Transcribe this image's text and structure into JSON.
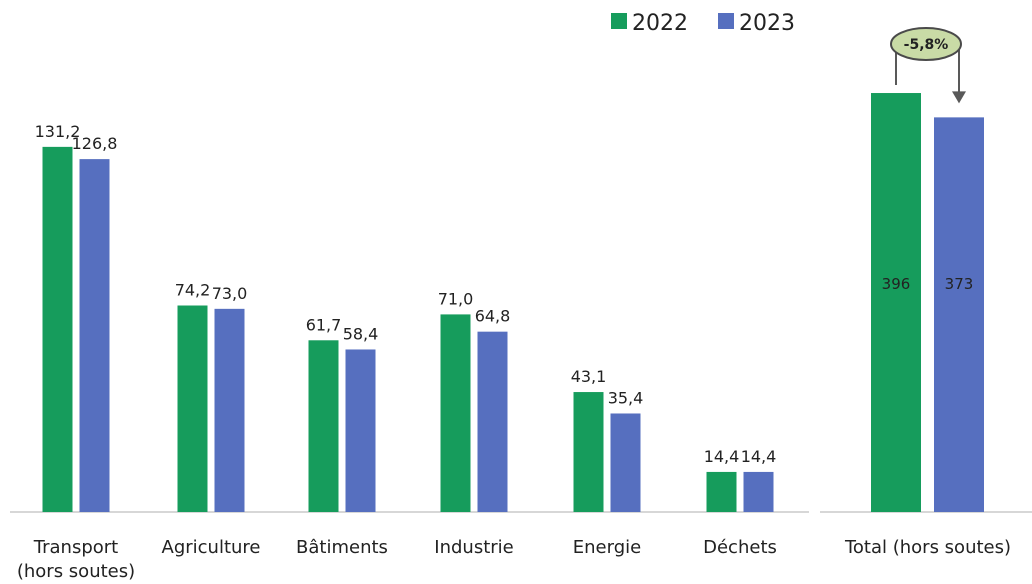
{
  "colors": {
    "y2022": "#169c5c",
    "y2023": "#566fbf",
    "axis": "#bfbfbf",
    "badge_bg": "#c9dba6",
    "badge_border": "#4a4a4a",
    "arrow": "#595959"
  },
  "chart_data": [
    {
      "type": "bar",
      "categories": [
        "Transport (hors soutes)",
        "Agriculture",
        "Bâtiments",
        "Industrie",
        "Energie",
        "Déchets"
      ],
      "category_lines": [
        [
          "Transport",
          "(hors soutes)"
        ],
        [
          "Agriculture"
        ],
        [
          "Bâtiments"
        ],
        [
          "Industrie"
        ],
        [
          "Energie"
        ],
        [
          "Déchets"
        ]
      ],
      "series": [
        {
          "name": "2022",
          "values": [
            131.2,
            74.2,
            61.7,
            71.0,
            43.1,
            14.4
          ],
          "labels": [
            "131,2",
            "74,2",
            "61,7",
            "71,0",
            "43,1",
            "14,4"
          ]
        },
        {
          "name": "2023",
          "values": [
            126.8,
            73.0,
            58.4,
            64.8,
            35.4,
            14.4
          ],
          "labels": [
            "126,8",
            "73,0",
            "58,4",
            "64,8",
            "35,4",
            "14,4"
          ]
        }
      ],
      "ylim": [
        0,
        150
      ],
      "legend": "top-right",
      "grid": false
    },
    {
      "type": "bar",
      "categories": [
        "Total (hors soutes)"
      ],
      "series": [
        {
          "name": "2022",
          "values": [
            396
          ],
          "labels": [
            "396"
          ]
        },
        {
          "name": "2023",
          "values": [
            373
          ],
          "labels": [
            "373"
          ]
        }
      ],
      "ylim": [
        0,
        450
      ],
      "annotation": "-5,8%",
      "grid": false
    }
  ]
}
